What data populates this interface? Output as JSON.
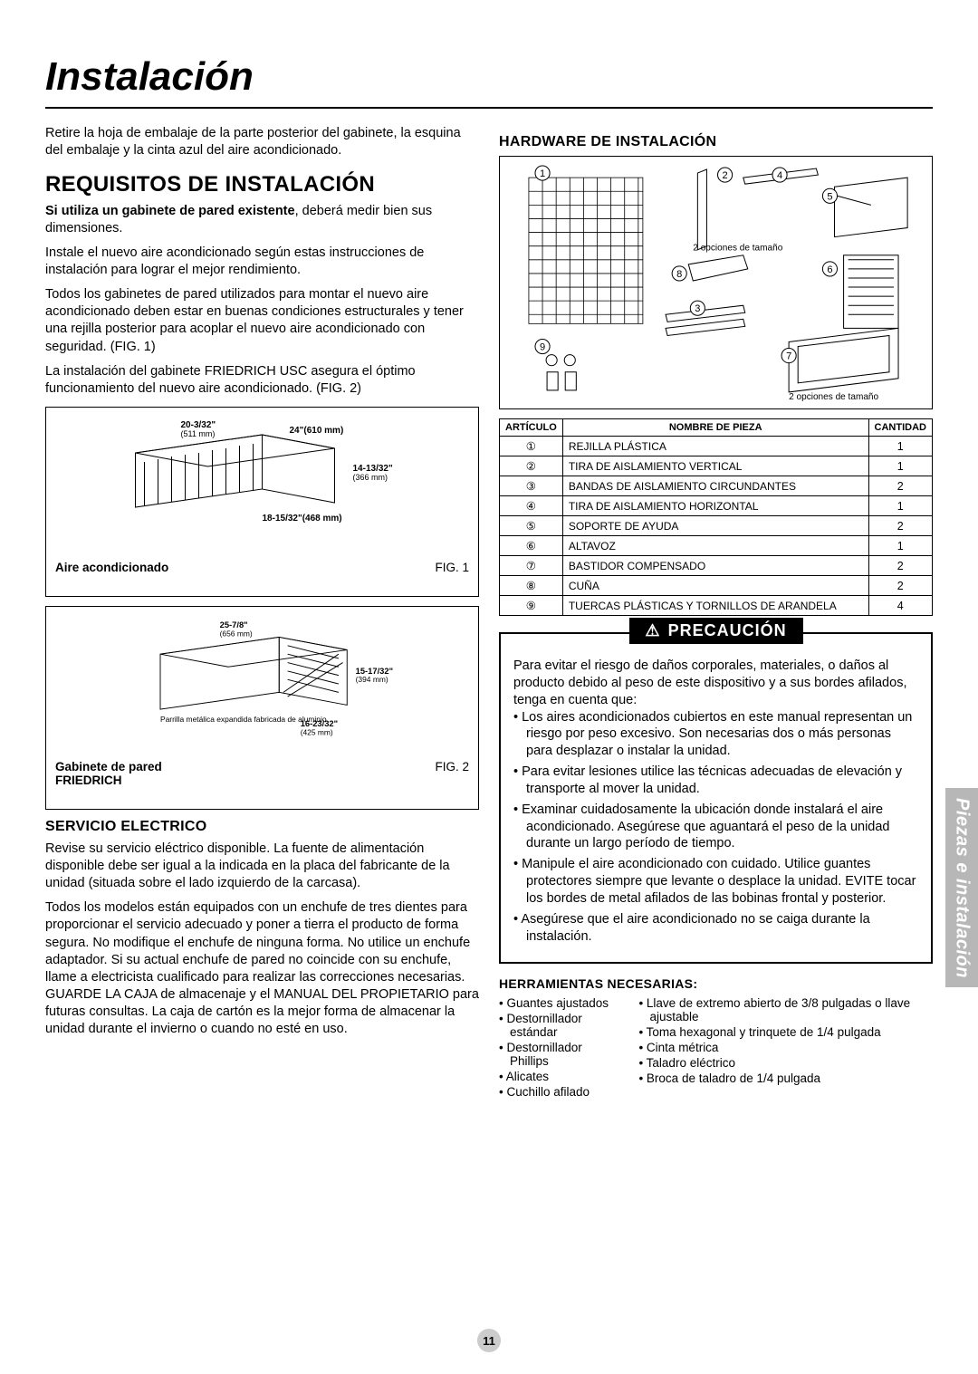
{
  "title": "Instalación",
  "side_tab": "Piezas e instalación",
  "page_number": "11",
  "left": {
    "intro": "Retire la hoja de embalaje de la parte posterior del gabinete, la esquina del embalaje y la cinta azul del aire acondicionado.",
    "h2": "REQUISITOS DE INSTALACIÓN",
    "p1_bold": "Si utiliza un gabinete de pared existente",
    "p1_rest": ", deberá medir bien sus dimensiones.",
    "p2": "Instale el nuevo aire acondicionado según estas instrucciones de instalación para lograr el mejor rendimiento.",
    "p3": "Todos los gabinetes de pared utilizados para montar el nuevo aire acondicionado deben estar en buenas condiciones estructurales y tener una rejilla posterior para acoplar el nuevo aire acondicionado con seguridad. (FIG. 1)",
    "p4": "La instalación del gabinete FRIEDRICH USC asegura el óptimo funcionamiento del nuevo aire acondicionado. (FIG. 2)",
    "fig1": {
      "dim_top": "20-3/32\"",
      "dim_top_mm": "(511 mm)",
      "dim_right_top": "24\"(610 mm)",
      "dim_right": "14-13/32\"",
      "dim_right_mm": "(366 mm)",
      "dim_bottom": "18-15/32\"(468 mm)",
      "caption_left": "Aire acondicionado",
      "caption_right": "FIG. 1"
    },
    "fig2": {
      "dim_top": "25-7/8\"",
      "dim_top_mm": "(656 mm)",
      "dim_right": "15-17/32\"",
      "dim_right_mm": "(394 mm)",
      "dim_bottom": "16-23/32\"",
      "dim_bottom_mm": "(425 mm)",
      "note": "Parrilla metálica expandida fabricada de aluminio",
      "caption_left1": "Gabinete de pared",
      "caption_left2": "FRIEDRICH",
      "caption_right": "FIG. 2"
    },
    "servicio_h": "SERVICIO ELECTRICO",
    "sp1": "Revise su servicio eléctrico disponible. La fuente de alimentación disponible debe ser igual a la indicada en la placa del fabricante de la unidad (situada sobre el lado izquierdo de la carcasa).",
    "sp2": "Todos los modelos están equipados con un enchufe de tres dientes para proporcionar el servicio adecuado y poner a tierra el producto de forma segura. No modifique el enchufe de ninguna forma. No utilice un enchufe adaptador. Si su actual enchufe de pared no coincide con su enchufe, llame a electricista cualificado para realizar las correcciones necesarias. GUARDE LA CAJA de almacenaje y el MANUAL DEL PROPIETARIO para futuras consultas. La caja de cartón es la mejor forma de almacenar la unidad durante el invierno o cuando no esté en uso."
  },
  "right": {
    "hw_h": "HARDWARE DE INSTALACIÓN",
    "size_note": "2 opciones de tamaño",
    "table": {
      "headers": {
        "a": "ARTÍCULO",
        "b": "NOMBRE DE PIEZA",
        "c": "CANTIDAD"
      },
      "rows": [
        {
          "n": "①",
          "name": "REJILLA PLÁSTICA",
          "q": "1"
        },
        {
          "n": "②",
          "name": "TIRA DE AISLAMIENTO VERTICAL",
          "q": "1"
        },
        {
          "n": "③",
          "name": "BANDAS DE AISLAMIENTO CIRCUNDANTES",
          "q": "2"
        },
        {
          "n": "④",
          "name": "TIRA DE AISLAMIENTO HORIZONTAL",
          "q": "1"
        },
        {
          "n": "⑤",
          "name": "SOPORTE DE AYUDA",
          "q": "2"
        },
        {
          "n": "⑥",
          "name": "ALTAVOZ",
          "q": "1"
        },
        {
          "n": "⑦",
          "name": "BASTIDOR COMPENSADO",
          "q": "2"
        },
        {
          "n": "⑧",
          "name": "CUÑA",
          "q": "2"
        },
        {
          "n": "⑨",
          "name": "TUERCAS PLÁSTICAS Y TORNILLOS DE ARANDELA",
          "q": "4"
        }
      ]
    },
    "caution_title": "PRECAUCIÓN",
    "caution_intro": "Para evitar el riesgo de daños corporales, materiales, o daños al producto debido al peso de este dispositivo y a sus bordes afilados, tenga en cuenta que:",
    "caution_items": [
      "Los aires acondicionados cubiertos en este manual representan un riesgo por peso excesivo. Son necesarias dos o más personas para desplazar o instalar la unidad.",
      "Para evitar lesiones utilice las técnicas adecuadas de elevación y transporte al mover la unidad.",
      "Examinar cuidadosamente la ubicación donde instalará el aire acondicionado. Asegúrese que aguantará el peso de la unidad durante un largo período de tiempo.",
      "Manipule el aire acondicionado con cuidado. Utilice guantes protectores siempre que levante o desplace la unidad. EVITE tocar los bordes de metal afilados de las bobinas frontal y posterior.",
      "Asegúrese que el aire acondicionado no se caiga durante la instalación."
    ],
    "tools_h": "HERRAMIENTAS NECESARIAS:",
    "tools_left": [
      "Guantes ajustados",
      "Destornillador estándar",
      "Destornillador Phillips",
      "Alicates",
      "Cuchillo afilado"
    ],
    "tools_right": [
      "Llave de extremo abierto de 3/8 pulgadas o llave ajustable",
      "Toma hexagonal y trinquete de 1/4 pulgada",
      "Cinta métrica",
      "Taladro eléctrico",
      "Broca de taladro de 1/4 pulgada"
    ]
  },
  "colors": {
    "tab_bg": "#b7b7b7",
    "pagenum_bg": "#cccccc"
  }
}
